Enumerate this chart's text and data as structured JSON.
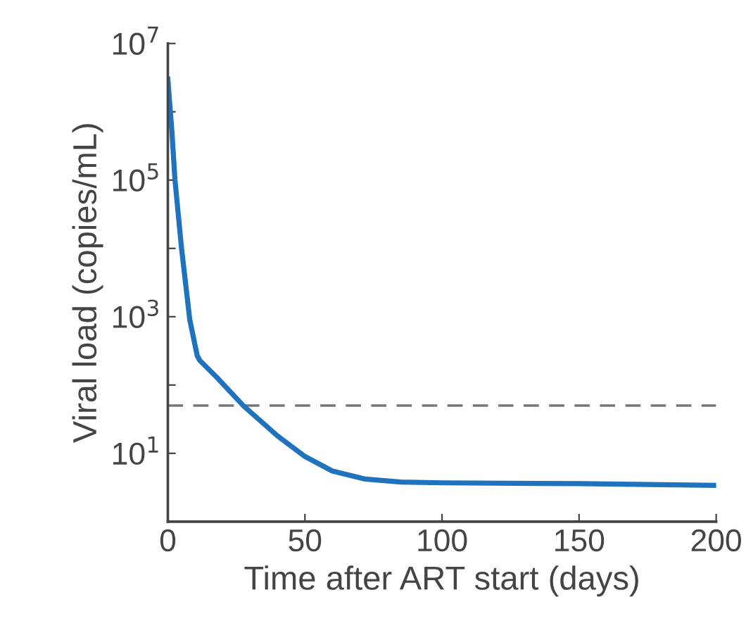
{
  "chart_data": {
    "type": "line",
    "xlabel": "Time after ART start (days)",
    "ylabel": "Viral load (copies/mL)",
    "log": "y",
    "x": [
      0,
      1.5,
      2.6,
      5,
      8,
      10.7,
      11.6,
      17.8,
      27.7,
      40,
      50,
      60,
      72,
      85,
      100,
      150,
      200
    ],
    "series": [
      {
        "color": "#1f72bd",
        "values": [
          3000000,
          500000,
          100000,
          10000,
          900,
          270,
          230,
          130,
          49,
          18,
          9,
          5.5,
          4.2,
          3.8,
          3.7,
          3.6,
          3.4
        ]
      }
    ],
    "xlim": [
      0,
      200
    ],
    "xticks": [
      0,
      50,
      100,
      150,
      200
    ],
    "ylim": [
      1,
      10000000
    ],
    "yticks": [
      {
        "value": 10,
        "label": "10$^{1}$"
      },
      {
        "value": 100,
        "label": null
      },
      {
        "value": 1000,
        "label": "10$^{3}$"
      },
      {
        "value": 10000,
        "label": null
      },
      {
        "value": 100000,
        "label": "10$^{5}$"
      },
      {
        "value": 1000000,
        "label": null
      },
      {
        "value": 10000000,
        "label": "10$^{7}$"
      }
    ],
    "ref_lines": [
      {
        "axis": "y",
        "value": 50,
        "color": "#777777",
        "line_style": "dashed"
      }
    ],
    "grid": false,
    "marker": "none",
    "line_style": "solid"
  }
}
